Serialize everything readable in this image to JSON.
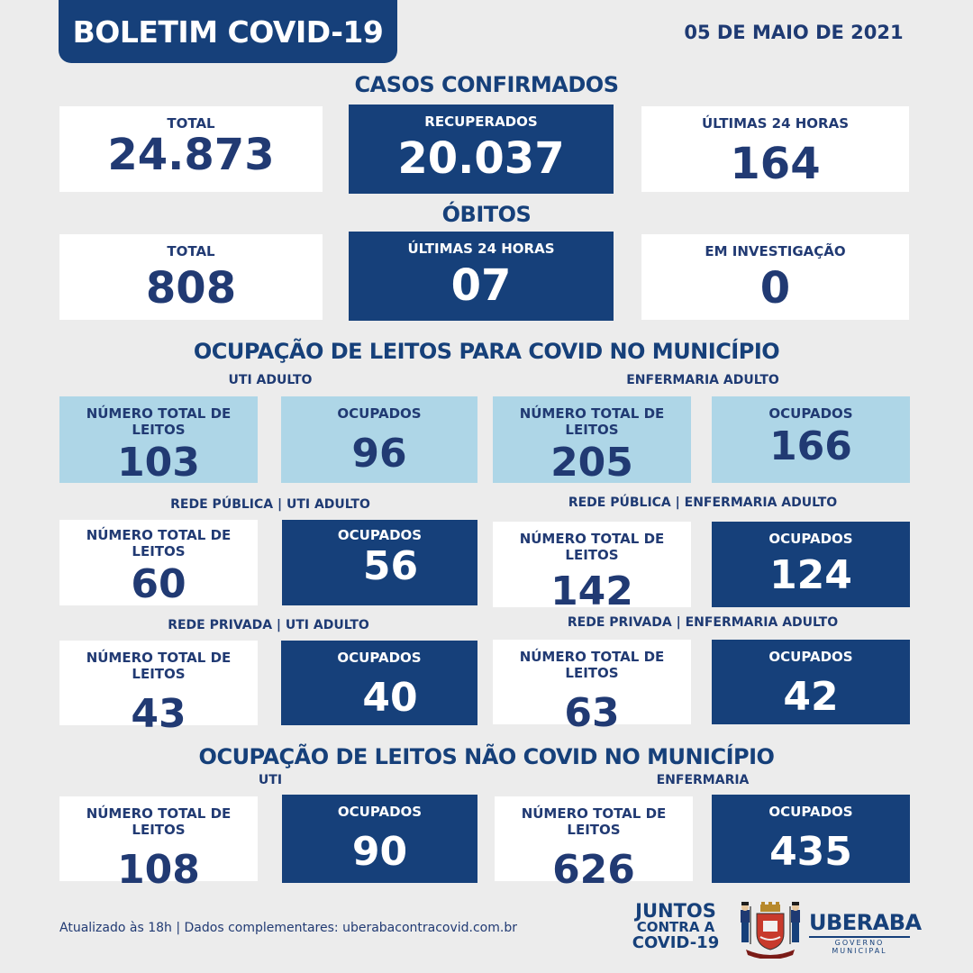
{
  "header": {
    "title": "BOLETIM COVID-19",
    "date": "05 DE MAIO DE 2021"
  },
  "casos": {
    "title": "CASOS CONFIRMADOS",
    "total_label": "TOTAL",
    "total_value": "24.873",
    "recuperados_label": "RECUPERADOS",
    "recuperados_value": "20.037",
    "ultimas_label": "ÚLTIMAS 24 HORAS",
    "ultimas_value": "164"
  },
  "obitos": {
    "title": "ÓBITOS",
    "total_label": "TOTAL",
    "total_value": "808",
    "ultimas_label": "ÚLTIMAS 24 HORAS",
    "ultimas_value": "07",
    "investigacao_label": "EM INVESTIGAÇÃO",
    "investigacao_value": "0"
  },
  "covid_leitos": {
    "title": "OCUPAÇÃO DE LEITOS PARA COVID NO MUNICÍPIO",
    "uti_label": "UTI ADULTO",
    "enf_label": "ENFERMARIA ADULTO",
    "uti_total_label": "NÚMERO TOTAL DE LEITOS",
    "uti_total_value": "103",
    "uti_ocup_label": "OCUPADOS",
    "uti_ocup_value": "96",
    "enf_total_label": "NÚMERO TOTAL DE LEITOS",
    "enf_total_value": "205",
    "enf_ocup_label": "OCUPADOS",
    "enf_ocup_value": "166",
    "pub_uti_label": "REDE PÚBLICA | UTI ADULTO",
    "pub_uti_total_label": "NÚMERO TOTAL DE LEITOS",
    "pub_uti_total_value": "60",
    "pub_uti_ocup_label": "OCUPADOS",
    "pub_uti_ocup_value": "56",
    "pub_enf_label": "REDE PÚBLICA | ENFERMARIA ADULTO",
    "pub_enf_total_label": "NÚMERO TOTAL DE LEITOS",
    "pub_enf_total_value": "142",
    "pub_enf_ocup_label": "OCUPADOS",
    "pub_enf_ocup_value": "124",
    "priv_uti_label": "REDE PRIVADA | UTI ADULTO",
    "priv_uti_total_label": "NÚMERO TOTAL DE LEITOS",
    "priv_uti_total_value": "43",
    "priv_uti_ocup_label": "OCUPADOS",
    "priv_uti_ocup_value": "40",
    "priv_enf_label": "REDE PRIVADA | ENFERMARIA ADULTO",
    "priv_enf_total_label": "NÚMERO TOTAL DE LEITOS",
    "priv_enf_total_value": "63",
    "priv_enf_ocup_label": "OCUPADOS",
    "priv_enf_ocup_value": "42"
  },
  "nao_covid": {
    "title": "OCUPAÇÃO DE LEITOS NÃO COVID NO MUNICÍPIO",
    "uti_label": "UTI",
    "enf_label": "ENFERMARIA",
    "uti_total_label": "NÚMERO TOTAL DE LEITOS",
    "uti_total_value": "108",
    "uti_ocup_label": "OCUPADOS",
    "uti_ocup_value": "90",
    "enf_total_label": "NÚMERO TOTAL DE LEITOS",
    "enf_total_value": "626",
    "enf_ocup_label": "OCUPADOS",
    "enf_ocup_value": "435"
  },
  "footer": {
    "note": "Atualizado às 18h | Dados complementares: uberabacontracovid.com.br",
    "juntos_l1": "JUNTOS",
    "juntos_l2": "CONTRA A",
    "juntos_l3": "COVID-19",
    "city_name": "UBERABA",
    "city_sub": "GOVERNO MUNICIPAL"
  },
  "colors": {
    "navy": "#16407a",
    "light_blue": "#aed6e7",
    "background": "#ececec"
  }
}
